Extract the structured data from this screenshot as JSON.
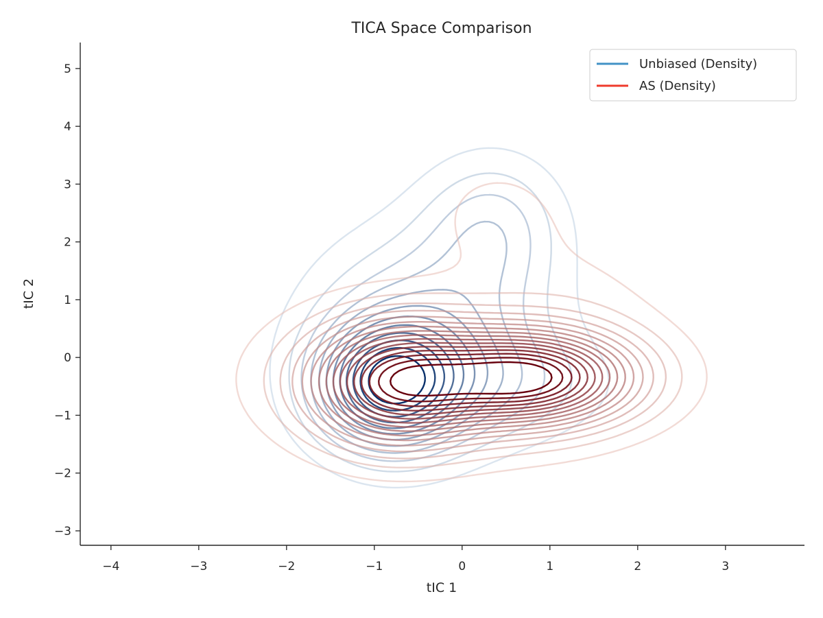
{
  "chart_data": {
    "type": "contour",
    "title": "TICA Space Comparison",
    "xlabel": "tIC 1",
    "ylabel": "tIC 2",
    "xlim": [
      -4.35,
      3.9
    ],
    "ylim": [
      -3.25,
      5.45
    ],
    "xticks": [
      -4,
      -3,
      -2,
      -1,
      0,
      1,
      2,
      3
    ],
    "yticks": [
      -3,
      -2,
      -1,
      0,
      1,
      2,
      3,
      4,
      5
    ],
    "xtick_labels": [
      "−4",
      "−3",
      "−2",
      "−1",
      "0",
      "1",
      "2",
      "3"
    ],
    "ytick_labels": [
      "−3",
      "−2",
      "−1",
      "0",
      "1",
      "2",
      "3",
      "4",
      "5"
    ],
    "grid": false,
    "legend_position": "top-right",
    "series": [
      {
        "name": "Unbiased (Density)",
        "color": "#4292c6",
        "colormap": "Blues",
        "levels": 12,
        "components": [
          {
            "cx": -0.85,
            "cy": -0.5,
            "sx": 0.55,
            "sy": 0.75,
            "w": 1.0
          },
          {
            "cx": -0.35,
            "cy": 0.4,
            "sx": 0.9,
            "sy": 1.2,
            "w": 0.5
          },
          {
            "cx": 0.35,
            "cy": 2.3,
            "sx": 0.55,
            "sy": 0.85,
            "w": 0.32
          },
          {
            "cx": 0.4,
            "cy": -0.5,
            "sx": 0.9,
            "sy": 0.6,
            "w": 0.2
          }
        ]
      },
      {
        "name": "AS (Density)",
        "color": "#ef3b2c",
        "colormap": "Reds",
        "levels": 16,
        "components": [
          {
            "cx": 0.8,
            "cy": -0.35,
            "sx": 0.8,
            "sy": 0.55,
            "w": 1.0
          },
          {
            "cx": -0.8,
            "cy": -0.45,
            "sx": 0.65,
            "sy": 0.7,
            "w": 0.8
          },
          {
            "cx": -0.1,
            "cy": -0.35,
            "sx": 1.3,
            "sy": 0.85,
            "w": 0.35
          },
          {
            "cx": 0.4,
            "cy": 2.45,
            "sx": 0.6,
            "sy": 0.75,
            "w": 0.1
          },
          {
            "cx": 1.4,
            "cy": 1.2,
            "sx": 0.7,
            "sy": 0.8,
            "w": 0.06
          }
        ]
      }
    ]
  }
}
